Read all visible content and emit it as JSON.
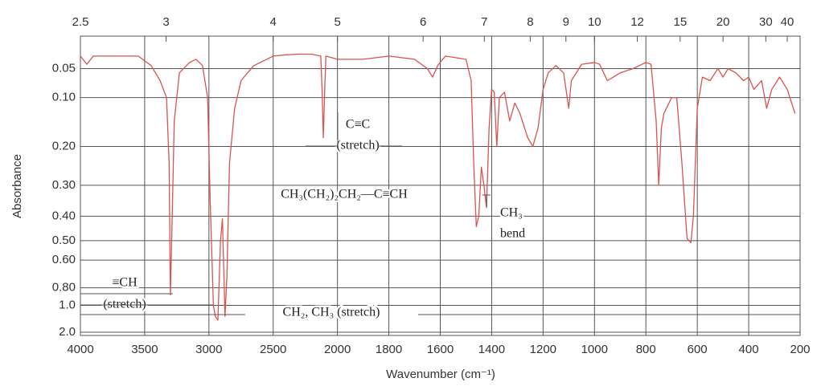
{
  "chart_data": {
    "type": "line",
    "xlabel": "Wavenumber (cm⁻¹)",
    "ylabel": "Absorbance",
    "color": "#d9534f",
    "xlim": [
      4000,
      200
    ],
    "xscale": {
      "break": 2000,
      "factor": 2
    },
    "xticks": [
      4000,
      3500,
      3000,
      2500,
      2000,
      1800,
      1600,
      1400,
      1200,
      1000,
      800,
      600,
      400,
      200
    ],
    "x2ticks": [
      2.5,
      3,
      4,
      5,
      6,
      7,
      8,
      9,
      10,
      12,
      15,
      20,
      30,
      40
    ],
    "ylim": [
      0,
      2
    ],
    "yscale": "transmittance",
    "yticks": [
      0.05,
      {
        "value": 0.1,
        "label": "0.10"
      },
      {
        "value": 0.2,
        "label": "0.20"
      },
      {
        "value": 0.3,
        "label": "0.30"
      },
      {
        "value": 0.4,
        "label": "0.40"
      },
      {
        "value": 0.5,
        "label": "0.50"
      },
      {
        "value": 0.6,
        "label": "0.60"
      },
      {
        "value": 0.8,
        "label": "0.80"
      },
      {
        "value": 1,
        "label": "1.0"
      },
      {
        "value": 2,
        "label": "2.0"
      }
    ],
    "grid": true,
    "x": [
      4000,
      3950,
      3900,
      3700,
      3550,
      3450,
      3380,
      3330,
      3310,
      3300,
      3290,
      3270,
      3230,
      3150,
      3100,
      3050,
      3010,
      2990,
      2965,
      2950,
      2930,
      2910,
      2895,
      2875,
      2860,
      2840,
      2800,
      2750,
      2700,
      2650,
      2600,
      2500,
      2400,
      2300,
      2200,
      2130,
      2120,
      2110,
      2100,
      2090,
      2000,
      1900,
      1800,
      1700,
      1650,
      1630,
      1610,
      1580,
      1500,
      1480,
      1470,
      1460,
      1450,
      1440,
      1430,
      1420,
      1410,
      1400,
      1390,
      1380,
      1370,
      1350,
      1330,
      1310,
      1290,
      1260,
      1240,
      1220,
      1200,
      1180,
      1150,
      1120,
      1100,
      1090,
      1050,
      1000,
      980,
      950,
      900,
      850,
      800,
      780,
      760,
      750,
      740,
      730,
      700,
      680,
      660,
      640,
      625,
      615,
      600,
      580,
      550,
      520,
      500,
      480,
      450,
      420,
      400,
      380,
      350,
      330,
      310,
      280,
      250,
      220
    ],
    "values": [
      0.03,
      0.043,
      0.03,
      0.03,
      0.03,
      0.045,
      0.07,
      0.1,
      0.24,
      0.87,
      0.5,
      0.145,
      0.057,
      0.04,
      0.035,
      0.045,
      0.1,
      0.35,
      1.0,
      1.2,
      1.3,
      0.5,
      0.41,
      1.2,
      0.7,
      0.24,
      0.12,
      0.07,
      0.057,
      0.045,
      0.04,
      0.03,
      0.028,
      0.027,
      0.027,
      0.03,
      0.085,
      0.18,
      0.09,
      0.03,
      0.035,
      0.035,
      0.03,
      0.035,
      0.05,
      0.064,
      0.045,
      0.03,
      0.035,
      0.07,
      0.24,
      0.44,
      0.4,
      0.25,
      0.3,
      0.37,
      0.16,
      0.085,
      0.09,
      0.2,
      0.1,
      0.09,
      0.145,
      0.11,
      0.13,
      0.18,
      0.2,
      0.16,
      0.085,
      0.057,
      0.045,
      0.057,
      0.12,
      0.07,
      0.043,
      0.04,
      0.043,
      0.07,
      0.057,
      0.05,
      0.04,
      0.043,
      0.145,
      0.3,
      0.16,
      0.13,
      0.1,
      0.1,
      0.24,
      0.49,
      0.51,
      0.4,
      0.12,
      0.064,
      0.07,
      0.05,
      0.064,
      0.05,
      0.057,
      0.07,
      0.064,
      0.085,
      0.07,
      0.12,
      0.085,
      0.064,
      0.085,
      0.13
    ],
    "annotations": [
      "C≡C",
      "(stretch)",
      "CH₃(CH₂)₂CH₂—C≡CH",
      "CH₃",
      "bend",
      "≡CH",
      "(stretch)",
      "CH₂, CH₃ (stretch)"
    ]
  }
}
